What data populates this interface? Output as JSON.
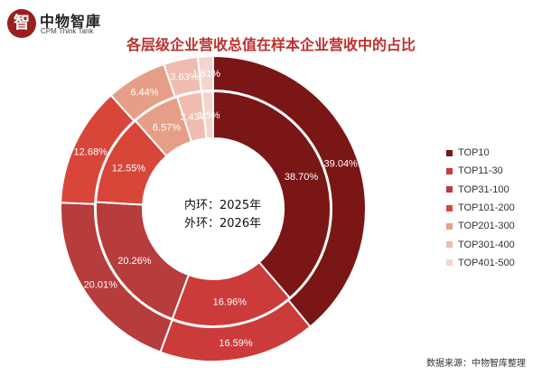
{
  "header": {
    "logo_mark": "智",
    "logo_name": "中物智庫",
    "logo_sub": "CPM Think Tank"
  },
  "chart_data": {
    "type": "pie",
    "subtype": "nested-donut",
    "title": "各层级企业营收总值在样本企业营收中的占比",
    "center_labels": [
      "内环：2025年",
      "外环：2026年"
    ],
    "categories": [
      "TOP10",
      "TOP11-30",
      "TOP31-100",
      "TOP101-200",
      "TOP201-300",
      "TOP301-400",
      "TOP401-500"
    ],
    "colors": [
      "#7b1616",
      "#cc3a3a",
      "#b73c3c",
      "#d8463a",
      "#e69f86",
      "#f0bcb0",
      "#f4d5cc"
    ],
    "series": [
      {
        "ring": "inner",
        "values": [
          38.7,
          16.96,
          20.26,
          12.55,
          6.57,
          3.43,
          1.53
        ],
        "labels": [
          "38.70%",
          "16.96%",
          "20.26%",
          "12.55%",
          "6.57%",
          "3.43%",
          "1.5%"
        ]
      },
      {
        "ring": "outer",
        "values": [
          39.04,
          16.59,
          20.01,
          12.68,
          6.44,
          3.63,
          1.61
        ],
        "labels": [
          "39.04%",
          "16.59%",
          "20.01%",
          "12.68%",
          "6.44%",
          "3.63%",
          "1.61%"
        ]
      }
    ],
    "legend": "right"
  },
  "footer": {
    "source": "数据来源：中物智库整理"
  }
}
